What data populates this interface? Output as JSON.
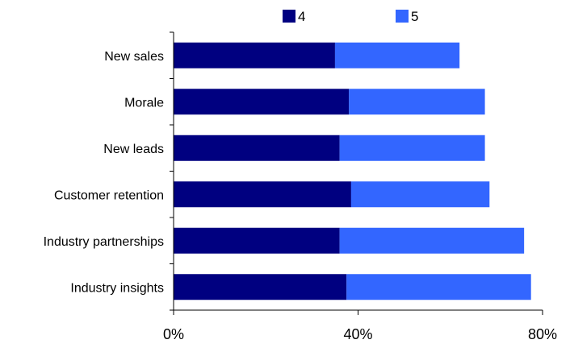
{
  "chart_data": {
    "type": "bar",
    "orientation": "horizontal",
    "stacked": true,
    "categories": [
      "New sales",
      "Morale",
      "New leads",
      "Customer retention",
      "Industry partnerships",
      "Industry insights"
    ],
    "series": [
      {
        "name": "4",
        "color": "#000080",
        "values": [
          35,
          38,
          36,
          38.5,
          36,
          37.5
        ]
      },
      {
        "name": "5",
        "color": "#3366ff",
        "values": [
          27,
          29.5,
          31.5,
          30,
          40,
          40
        ]
      }
    ],
    "xlim": [
      0,
      80
    ],
    "xticks": [
      0,
      40,
      80
    ],
    "xtick_labels": [
      "0%",
      "40%",
      "80%"
    ],
    "legend_position": "top",
    "grid": false
  }
}
